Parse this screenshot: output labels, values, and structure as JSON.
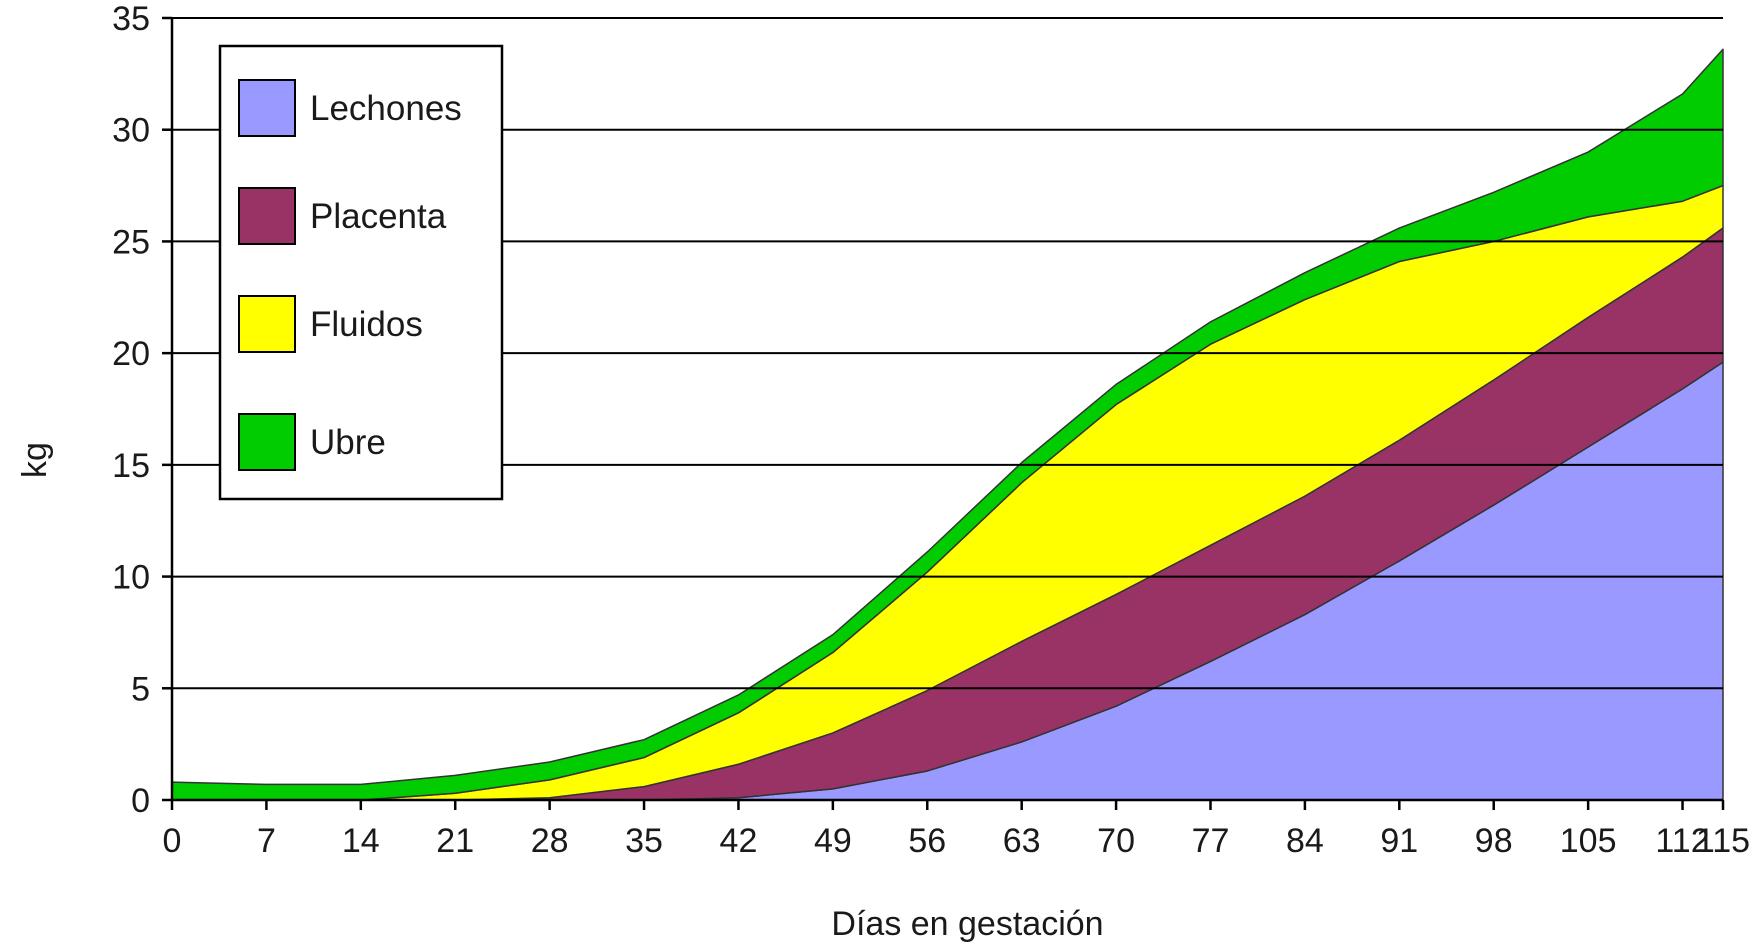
{
  "chart_data": {
    "type": "area",
    "stacked": true,
    "xlabel": "Días en gestación",
    "ylabel": "kg",
    "xlim": [
      0,
      115
    ],
    "ylim": [
      0,
      35
    ],
    "x_ticks": [
      0,
      7,
      14,
      21,
      28,
      35,
      42,
      49,
      56,
      63,
      70,
      77,
      84,
      91,
      98,
      105,
      112,
      115
    ],
    "y_ticks": [
      0,
      5,
      10,
      15,
      20,
      25,
      30,
      35
    ],
    "grid": "horizontal",
    "legend_position": "top-left",
    "x": [
      0,
      7,
      14,
      21,
      28,
      35,
      42,
      49,
      56,
      63,
      70,
      77,
      84,
      91,
      98,
      105,
      112,
      115
    ],
    "series": [
      {
        "name": "Lechones",
        "color": "#9999ff",
        "values": [
          0,
          0,
          0,
          0,
          0,
          0,
          0.1,
          0.5,
          1.3,
          2.6,
          4.2,
          6.2,
          8.3,
          10.7,
          13.2,
          15.8,
          18.4,
          19.6
        ]
      },
      {
        "name": "Placenta",
        "color": "#993366",
        "values": [
          0,
          0,
          0,
          0,
          0.1,
          0.6,
          1.5,
          2.5,
          3.6,
          4.5,
          5.0,
          5.2,
          5.3,
          5.4,
          5.6,
          5.8,
          5.9,
          6.0
        ]
      },
      {
        "name": "Fluidos",
        "color": "#ffff00",
        "values": [
          0,
          0,
          0,
          0.3,
          0.8,
          1.3,
          2.3,
          3.6,
          5.3,
          7.1,
          8.5,
          9.0,
          8.8,
          8.0,
          6.2,
          4.5,
          2.5,
          1.9
        ]
      },
      {
        "name": "Ubre",
        "color": "#00cc00",
        "values": [
          0.8,
          0.7,
          0.7,
          0.8,
          0.8,
          0.8,
          0.8,
          0.8,
          0.9,
          0.9,
          0.9,
          1.0,
          1.2,
          1.5,
          2.2,
          2.9,
          4.8,
          6.1
        ]
      }
    ]
  }
}
